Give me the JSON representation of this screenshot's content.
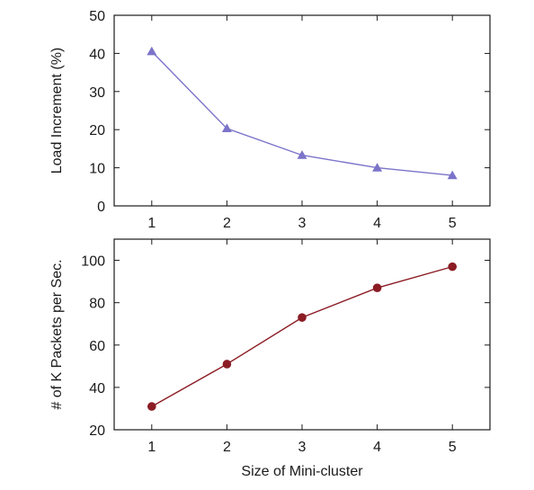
{
  "chart_data": [
    {
      "type": "line",
      "title": "",
      "xlabel": "",
      "ylabel": "Load Increment (%)",
      "x": [
        1,
        2,
        3,
        4,
        5
      ],
      "xticks": [
        "1",
        "2",
        "3",
        "4",
        "5"
      ],
      "xlim": [
        0.5,
        5.5
      ],
      "ylim": [
        0,
        50
      ],
      "yticks": [
        "0",
        "10",
        "20",
        "30",
        "40",
        "50"
      ],
      "grid": false,
      "legend": "none",
      "series": [
        {
          "values": [
            40.5,
            20.3,
            13.3,
            10.0,
            8.0
          ],
          "color": "#7b74c9",
          "marker": "triangle"
        }
      ]
    },
    {
      "type": "line",
      "title": "",
      "xlabel": "Size of Mini-cluster",
      "ylabel": "# of K Packets per Sec.",
      "x": [
        1,
        2,
        3,
        4,
        5
      ],
      "xticks": [
        "1",
        "2",
        "3",
        "4",
        "5"
      ],
      "xlim": [
        0.5,
        5.5
      ],
      "ylim": [
        20,
        110
      ],
      "yticks": [
        "20",
        "40",
        "60",
        "80",
        "100"
      ],
      "grid": false,
      "legend": "none",
      "series": [
        {
          "values": [
            31,
            51,
            73,
            87,
            97
          ],
          "color": "#8b1c24",
          "marker": "circle"
        }
      ]
    }
  ]
}
